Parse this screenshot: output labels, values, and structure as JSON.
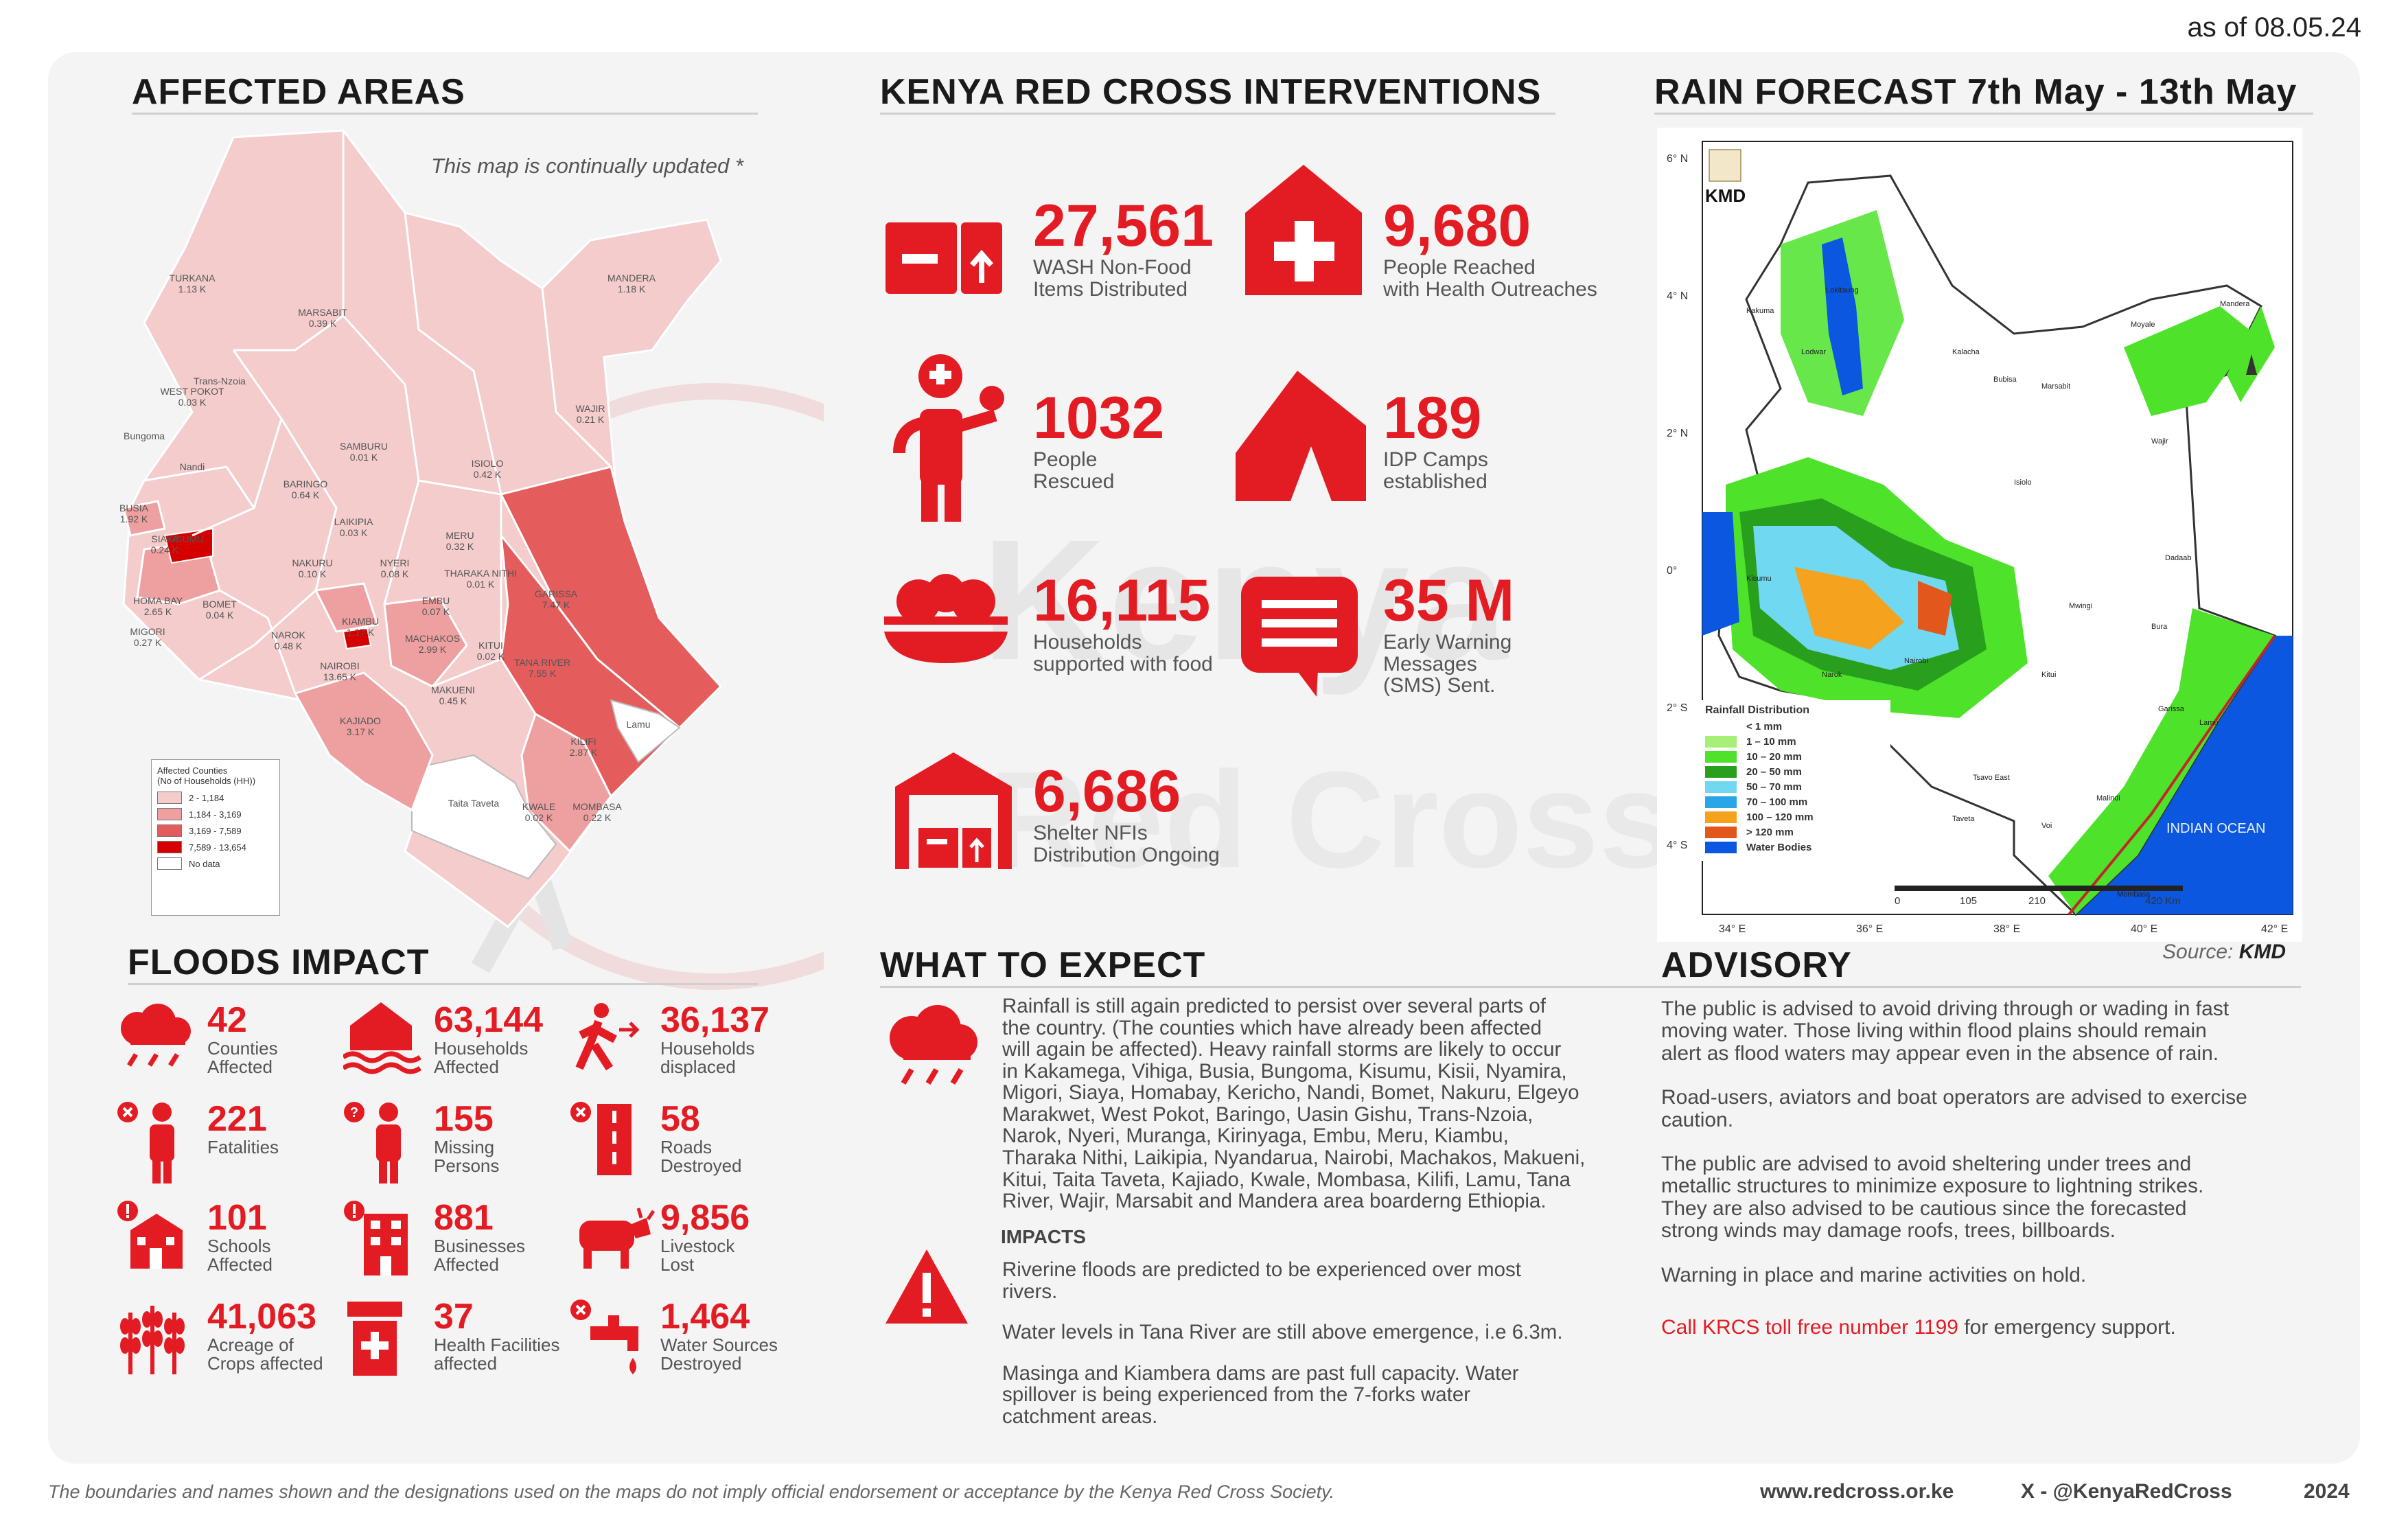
{
  "date": "as of 08.05.24",
  "watermark": {
    "l1": "Kenya",
    "l2": "Red Cross"
  },
  "affected": {
    "title": "AFFECTED AREAS",
    "note": "This map is continually updated *",
    "legend_title": "Affected Counties\n(No of Households (HH))",
    "legend": [
      {
        "label": "2 - 1,184",
        "color": "#f4cccc"
      },
      {
        "label": "1,184 - 3,169",
        "color": "#eea0a0"
      },
      {
        "label": "3,169 - 7,589",
        "color": "#e45c5c"
      },
      {
        "label": "7,589 - 13,654",
        "color": "#d40000"
      },
      {
        "label": "No data",
        "color": "#ffffff"
      }
    ],
    "counties": [
      {
        "name": "TURKANA",
        "value": "1.13 K"
      },
      {
        "name": "MARSABIT",
        "value": "0.39 K"
      },
      {
        "name": "MANDERA",
        "value": "1.18 K"
      },
      {
        "name": "WEST POKOT",
        "value": "0.03 K"
      },
      {
        "name": "WAJIR",
        "value": "0.21 K"
      },
      {
        "name": "SAMBURU",
        "value": "0.01 K"
      },
      {
        "name": "ISIOLO",
        "value": "0.42 K"
      },
      {
        "name": "BARINGO",
        "value": "0.64 K"
      },
      {
        "name": "BUSIA",
        "value": "1.92 K"
      },
      {
        "name": "SIAYA",
        "value": "0.24 K"
      },
      {
        "name": "LAIKIPIA",
        "value": "0.03 K"
      },
      {
        "name": "MERU",
        "value": "0.32 K"
      },
      {
        "name": "NAKURU",
        "value": "0.10 K"
      },
      {
        "name": "NYERI",
        "value": "0.08 K"
      },
      {
        "name": "THARAKA NITHI",
        "value": "0.01 K"
      },
      {
        "name": "GARISSA",
        "value": "7.47 K"
      },
      {
        "name": "HOMA BAY",
        "value": "2.65 K"
      },
      {
        "name": "BOMET",
        "value": "0.04 K"
      },
      {
        "name": "EMBU",
        "value": "0.07 K"
      },
      {
        "name": "MIGORI",
        "value": "0.27 K"
      },
      {
        "name": "KIAMBU",
        "value": "1.17 K"
      },
      {
        "name": "NAROK",
        "value": "0.48 K"
      },
      {
        "name": "MACHAKOS",
        "value": "2.99 K"
      },
      {
        "name": "KITUI",
        "value": "0.02 K"
      },
      {
        "name": "TANA RIVER",
        "value": "7.55 K"
      },
      {
        "name": "NAIROBI",
        "value": "13.65 K"
      },
      {
        "name": "MAKUENI",
        "value": "0.45 K"
      },
      {
        "name": "KAJIADO",
        "value": "3.17 K"
      },
      {
        "name": "KILIFI",
        "value": "2.87 K"
      },
      {
        "name": "KWALE",
        "value": "0.02 K"
      },
      {
        "name": "MOMBASA",
        "value": "0.22 K"
      }
    ],
    "extra_labels": [
      "Trans-Nzoia",
      "Bungoma",
      "Nandi",
      "KISUMU",
      "Lamu",
      "Taita Taveta"
    ]
  },
  "interventions": {
    "title": "KENYA RED CROSS INTERVENTIONS",
    "items": [
      {
        "value": "27,561",
        "l1": "WASH Non-Food",
        "l2": "Items Distributed",
        "icon": "box-icon"
      },
      {
        "value": "9,680",
        "l1": "People Reached",
        "l2": "with Health Outreaches",
        "icon": "health-icon"
      },
      {
        "value": "1032",
        "l1": "People",
        "l2": "Rescued",
        "icon": "rescuer-icon"
      },
      {
        "value": "189",
        "l1": "IDP Camps",
        "l2": "established",
        "icon": "tent-icon"
      },
      {
        "value": "16,115",
        "l1": "Households",
        "l2": "supported with food",
        "icon": "food-bowl-icon"
      },
      {
        "value": "35 M",
        "l1": "Early Warning",
        "l2": "Messages",
        "l3": "(SMS) Sent.",
        "icon": "message-icon"
      },
      {
        "value": "6,686",
        "l1": "Shelter NFIs",
        "l2": "Distribution Ongoing",
        "icon": "warehouse-icon"
      }
    ]
  },
  "forecast": {
    "title": "RAIN FORECAST 7th May - 13th May",
    "agency": "KMD",
    "source_label": "Source:",
    "source": "KMD",
    "lat_labels": [
      "6° N",
      "4° N",
      "2° N",
      "0°",
      "2° S",
      "4° S"
    ],
    "lon_labels": [
      "34° E",
      "36° E",
      "38° E",
      "40° E",
      "42° E"
    ],
    "legend_title": "Rainfall Distribution",
    "legend": [
      {
        "label": "< 1 mm",
        "color": "#ffffff"
      },
      {
        "label": "1 – 10 mm",
        "color": "#a6f07a"
      },
      {
        "label": "10 – 20 mm",
        "color": "#4ee32a"
      },
      {
        "label": "20 – 50 mm",
        "color": "#28a01e"
      },
      {
        "label": "50 – 70 mm",
        "color": "#70d8f0"
      },
      {
        "label": "70 – 100 mm",
        "color": "#2aa6e6"
      },
      {
        "label": "100 – 120 mm",
        "color": "#f5a21e"
      },
      {
        "label": "> 120 mm",
        "color": "#e2581c"
      },
      {
        "label": "Water Bodies",
        "color": "#0b57e0"
      }
    ],
    "scale": [
      "0",
      "105",
      "210",
      "420 Km"
    ],
    "ocean_label": "INDIAN OCEAN",
    "towns": [
      "Kakuma",
      "Lokitaung",
      "Lodwar",
      "Kalacha",
      "Bubisa",
      "Moyale",
      "Wajir",
      "Garissa",
      "Lamu",
      "Malindi",
      "Voi",
      "Mombasa",
      "Nairobi",
      "Narok",
      "Kisumu",
      "Marsabit",
      "Isiolo",
      "Mandera",
      "Dadaab",
      "Bura",
      "Kitui",
      "Mwingi",
      "Tsavo East",
      "Taveta"
    ]
  },
  "impact": {
    "title": "FLOODS IMPACT",
    "items": [
      {
        "value": "42",
        "l1": "Counties",
        "l2": "Affected",
        "icon": "rain-cloud-icon"
      },
      {
        "value": "63,144",
        "l1": "Households",
        "l2": "Affected",
        "icon": "flooded-house-icon"
      },
      {
        "value": "36,137",
        "l1": "Households",
        "l2": "displaced",
        "icon": "displaced-person-icon"
      },
      {
        "value": "221",
        "l1": "Fatalities",
        "l2": "",
        "icon": "fatality-icon"
      },
      {
        "value": "155",
        "l1": "Missing",
        "l2": "Persons",
        "icon": "missing-person-icon"
      },
      {
        "value": "58",
        "l1": "Roads",
        "l2": "Destroyed",
        "icon": "road-icon"
      },
      {
        "value": "101",
        "l1": "Schools",
        "l2": "Affected",
        "icon": "school-icon"
      },
      {
        "value": "881",
        "l1": "Businesses",
        "l2": "Affected",
        "icon": "business-icon"
      },
      {
        "value": "9,856",
        "l1": "Livestock",
        "l2": "Lost",
        "icon": "livestock-icon"
      },
      {
        "value": "41,063",
        "l1": "Acreage of",
        "l2": "Crops affected",
        "icon": "crops-icon"
      },
      {
        "value": "37",
        "l1": "Health Facilities",
        "l2": "affected",
        "icon": "health-facility-icon"
      },
      {
        "value": "1,464",
        "l1": "Water Sources",
        "l2": "Destroyed",
        "icon": "water-tap-icon"
      }
    ]
  },
  "expect": {
    "title": "WHAT TO EXPECT",
    "lines": [
      "Rainfall is still again predicted to persist over several parts of",
      "the country.  (The counties which have already been affected",
      "will again be affected). Heavy rainfall storms are likely to occur",
      "in Kakamega, Vihiga, Busia, Bungoma, Kisumu, Kisii, Nyamira,",
      "Migori, Siaya, Homabay, Kericho, Nandi, Bomet, Nakuru, Elgeyo",
      "Marakwet, West Pokot, Baringo, Uasin Gishu, Trans-Nzoia,",
      "Narok, Nyeri, Muranga, Kirinyaga, Embu, Meru, Kiambu,",
      "Tharaka Nithi, Laikipia, Nyandarua, Nairobi, Machakos, Makueni,",
      "Kitui, Taita Taveta, Kajiado, Kwale, Mombasa, Kilifi, Lamu, Tana",
      "River, Wajir, Marsabit and Mandera area boarderng Ethiopia."
    ],
    "impacts_title": "IMPACTS",
    "impacts": [
      [
        "Riverine floods are predicted to be experienced over most",
        "rivers."
      ],
      [
        "Water levels in Tana River are still above emergence, i.e 6.3m."
      ],
      [
        "Masinga and Kiambera dams are past full capacity. Water",
        "spillover is being experienced from the 7-forks water",
        "catchment areas."
      ]
    ]
  },
  "advisory": {
    "title": "ADVISORY",
    "paras": [
      [
        "The public is advised to avoid driving through or wading in fast",
        "moving water. Those living within flood plains should remain",
        "alert as flood waters may appear even in the absence of rain."
      ],
      [
        "Road-users, aviators and boat operators are advised to exercise",
        "caution."
      ],
      [
        "The public are advised to avoid sheltering under trees and",
        "metallic structures to minimize exposure to lightning strikes.",
        "They are also advised to be cautious since the forecasted",
        "strong winds may damage roofs, trees, billboards."
      ],
      [
        "Warning in place and marine activities on hold."
      ]
    ],
    "cta_red": "Call KRCS toll free number 1199",
    "cta_rest": " for emergency support."
  },
  "footer": {
    "disclaimer": "The boundaries and names shown and the designations used on the maps do not imply official endorsement or acceptance by the Kenya Red Cross Society.",
    "website": "www.redcross.or.ke",
    "social": "X -  @KenyaRedCross",
    "year": "2024"
  },
  "colors": {
    "accent": "#e31c24",
    "panel": "#f4f4f4"
  }
}
